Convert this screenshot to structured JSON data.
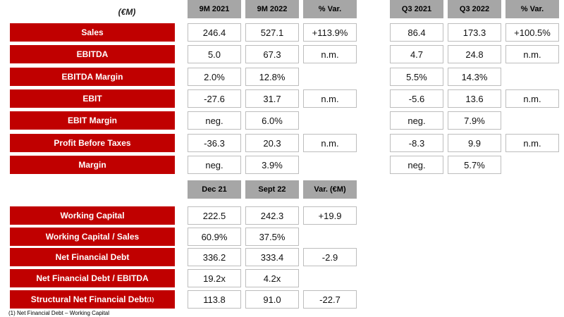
{
  "unit_label": "(€M)",
  "pl_headers_9m": [
    "9M 2021",
    "9M 2022",
    "% Var."
  ],
  "pl_headers_q3": [
    "Q3 2021",
    "Q3 2022",
    "% Var."
  ],
  "pl_rows": [
    {
      "label": "Sales",
      "m21": "246.4",
      "m22": "527.1",
      "mvar": "+113.9%",
      "q21": "86.4",
      "q22": "173.3",
      "qvar": "+100.5%"
    },
    {
      "label": "EBITDA",
      "m21": "5.0",
      "m22": "67.3",
      "mvar": "n.m.",
      "q21": "4.7",
      "q22": "24.8",
      "qvar": "n.m."
    },
    {
      "label": "EBITDA Margin",
      "m21": "2.0%",
      "m22": "12.8%",
      "mvar": "",
      "q21": "5.5%",
      "q22": "14.3%",
      "qvar": ""
    },
    {
      "label": "EBIT",
      "m21": "-27.6",
      "m22": "31.7",
      "mvar": "n.m.",
      "q21": "-5.6",
      "q22": "13.6",
      "qvar": "n.m."
    },
    {
      "label": "EBIT Margin",
      "m21": "neg.",
      "m22": "6.0%",
      "mvar": "",
      "q21": "neg.",
      "q22": "7.9%",
      "qvar": ""
    },
    {
      "label": "Profit Before Taxes",
      "m21": "-36.3",
      "m22": "20.3",
      "mvar": "n.m.",
      "q21": "-8.3",
      "q22": "9.9",
      "qvar": "n.m."
    },
    {
      "label": "Margin",
      "m21": "neg.",
      "m22": "3.9%",
      "mvar": "",
      "q21": "neg.",
      "q22": "5.7%",
      "qvar": ""
    }
  ],
  "bs_headers": [
    "Dec 21",
    "Sept 22",
    "Var. (€M)"
  ],
  "bs_rows": [
    {
      "label": "Working Capital",
      "sup": "",
      "c1": "222.5",
      "c2": "242.3",
      "c3": "+19.9"
    },
    {
      "label": "Working Capital / Sales",
      "sup": "",
      "c1": "60.9%",
      "c2": "37.5%",
      "c3": ""
    },
    {
      "label": "Net Financial Debt",
      "sup": "",
      "c1": "336.2",
      "c2": "333.4",
      "c3": "-2.9"
    },
    {
      "label": "Net Financial Debt / EBITDA",
      "sup": "",
      "c1": "19.2x",
      "c2": "4.2x",
      "c3": ""
    },
    {
      "label": "Structural Net Financial Debt",
      "sup": "(1)",
      "c1": "113.8",
      "c2": "91.0",
      "c3": "-22.7"
    }
  ],
  "footnote": "(1) Net Financial Debt – Working Capital"
}
